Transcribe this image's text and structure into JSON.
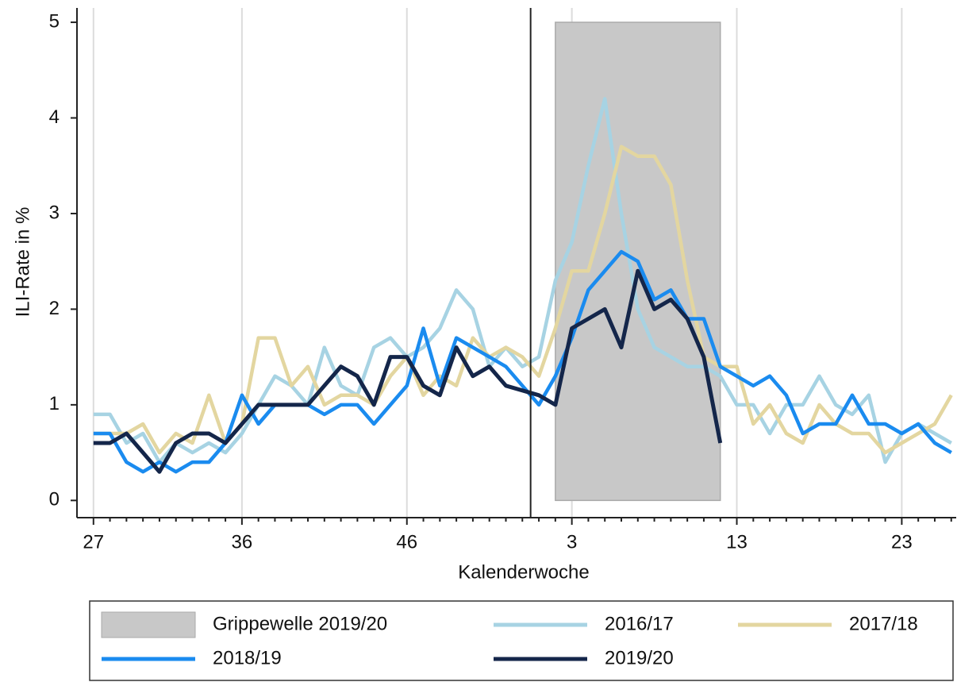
{
  "chart_data": {
    "type": "line",
    "categories": [
      "27",
      null,
      null,
      null,
      null,
      null,
      null,
      null,
      null,
      "36",
      null,
      null,
      null,
      null,
      null,
      null,
      null,
      null,
      null,
      "46",
      null,
      null,
      null,
      null,
      null,
      null,
      null,
      null,
      null,
      "3",
      null,
      null,
      null,
      null,
      null,
      null,
      null,
      null,
      null,
      "13",
      null,
      null,
      null,
      null,
      null,
      null,
      null,
      null,
      null,
      "23",
      null,
      null,
      null
    ],
    "x_label": "Kalenderwoche",
    "y_label": "ILI-Rate in %",
    "ylim": [
      -0.18,
      5.15
    ],
    "yticks": [
      0,
      1,
      2,
      3,
      4,
      5
    ],
    "grid": true,
    "legend": "bottom",
    "series": [
      {
        "name": "Grippewelle 2019/20",
        "kind": "area",
        "color": "#c8c8c8",
        "values": [
          null,
          null,
          null,
          null,
          null,
          null,
          null,
          null,
          null,
          null,
          null,
          null,
          null,
          null,
          null,
          null,
          null,
          null,
          null,
          null,
          null,
          null,
          null,
          null,
          null,
          null,
          null,
          null,
          5,
          5,
          5,
          5,
          5,
          5,
          5,
          5,
          5,
          5,
          5,
          null,
          null,
          null,
          null,
          null,
          null,
          null,
          null,
          null,
          null,
          null,
          null,
          null,
          null
        ]
      },
      {
        "name": "2016/17",
        "color": "#a7d3e3",
        "values": [
          0.9,
          0.9,
          0.6,
          0.7,
          0.4,
          0.6,
          0.5,
          0.6,
          0.5,
          0.7,
          1.0,
          1.3,
          1.2,
          1.0,
          1.6,
          1.2,
          1.1,
          1.6,
          1.7,
          1.5,
          1.6,
          1.8,
          2.2,
          2.0,
          1.4,
          1.6,
          1.4,
          1.5,
          2.3,
          2.7,
          3.5,
          4.2,
          3.0,
          2.0,
          1.6,
          1.5,
          1.4,
          1.4,
          1.3,
          1.0,
          1.0,
          0.7,
          1.0,
          1.0,
          1.3,
          1.0,
          0.9,
          1.1,
          0.4,
          0.7,
          0.8,
          0.7,
          0.6
        ]
      },
      {
        "name": "2017/18",
        "color": "#e3d6a0",
        "values": [
          0.7,
          0.7,
          0.7,
          0.8,
          0.5,
          0.7,
          0.6,
          1.1,
          0.6,
          0.8,
          1.7,
          1.7,
          1.2,
          1.4,
          1.0,
          1.1,
          1.1,
          1.0,
          1.3,
          1.5,
          1.1,
          1.3,
          1.2,
          1.7,
          1.5,
          1.6,
          1.5,
          1.3,
          1.8,
          2.4,
          2.4,
          3.0,
          3.7,
          3.6,
          3.6,
          3.3,
          2.3,
          1.5,
          1.4,
          1.4,
          0.8,
          1.0,
          0.7,
          0.6,
          1.0,
          0.8,
          0.7,
          0.7,
          0.5,
          0.6,
          0.7,
          0.8,
          1.1
        ]
      },
      {
        "name": "2018/19",
        "color": "#1a8bef",
        "values": [
          0.7,
          0.7,
          0.4,
          0.3,
          0.4,
          0.3,
          0.4,
          0.4,
          0.6,
          1.1,
          0.8,
          1.0,
          1.0,
          1.0,
          0.9,
          1.0,
          1.0,
          0.8,
          1.0,
          1.2,
          1.8,
          1.2,
          1.7,
          1.6,
          1.5,
          1.4,
          1.2,
          1.0,
          1.3,
          1.7,
          2.2,
          2.4,
          2.6,
          2.5,
          2.1,
          2.2,
          1.9,
          1.9,
          1.4,
          1.3,
          1.2,
          1.3,
          1.1,
          0.7,
          0.8,
          0.8,
          1.1,
          0.8,
          0.8,
          0.7,
          0.8,
          0.6,
          0.5
        ]
      },
      {
        "name": "2019/20",
        "color": "#14264a",
        "values": [
          0.6,
          0.6,
          0.7,
          0.5,
          0.3,
          0.6,
          0.7,
          0.7,
          0.6,
          0.8,
          1.0,
          1.0,
          1.0,
          1.0,
          1.2,
          1.4,
          1.3,
          1.0,
          1.5,
          1.5,
          1.2,
          1.1,
          1.6,
          1.3,
          1.4,
          1.2,
          1.15,
          1.1,
          1.0,
          1.8,
          1.9,
          2.0,
          1.6,
          2.4,
          2.0,
          2.1,
          1.9,
          1.5,
          0.6,
          null,
          null,
          null,
          null,
          null,
          null,
          null,
          null,
          null,
          null,
          null,
          null,
          null,
          null
        ]
      }
    ]
  }
}
